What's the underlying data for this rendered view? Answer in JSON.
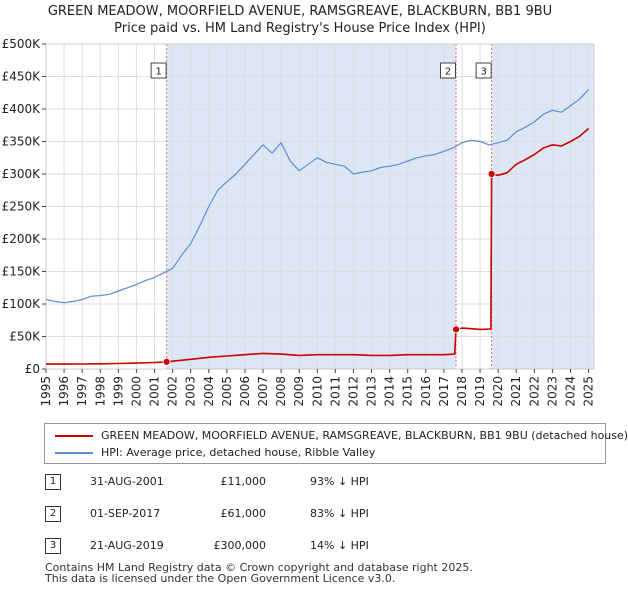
{
  "title_line1": "GREEN MEADOW, MOORFIELD AVENUE, RAMSGREAVE, BLACKBURN, BB1 9BU",
  "title_line2": "Price paid vs. HM Land Registry's House Price Index (HPI)",
  "colors": {
    "property": "#cc0000",
    "hpi": "#5b8fd4",
    "band": "#dce6f5",
    "vline": "#e07070",
    "grid": "#dddddd"
  },
  "legend": {
    "property_label": "GREEN MEADOW, MOORFIELD AVENUE, RAMSGREAVE, BLACKBURN, BB1 9BU (detached house)",
    "hpi_label": "HPI: Average price, detached house, Ribble Valley"
  },
  "sales": [
    {
      "num": "1",
      "date": "31-AUG-2001",
      "price": "£11,000",
      "relation": "93% ↓ HPI"
    },
    {
      "num": "2",
      "date": "01-SEP-2017",
      "price": "£61,000",
      "relation": "83% ↓ HPI"
    },
    {
      "num": "3",
      "date": "21-AUG-2019",
      "price": "£300,000",
      "relation": "14% ↓ HPI"
    }
  ],
  "footer": {
    "line1": "Contains HM Land Registry data © Crown copyright and database right 2025.",
    "line2": "This data is licensed under the Open Government Licence v3.0."
  },
  "chart_data": {
    "type": "line",
    "title": "GREEN MEADOW, MOORFIELD AVENUE, RAMSGREAVE, BLACKBURN, BB1 9BU — Price paid vs. HM Land Registry's House Price Index (HPI)",
    "xlabel": "",
    "ylabel": "",
    "xlim": [
      1995.0,
      2025.3
    ],
    "ylim": [
      0,
      500000
    ],
    "y_ticks": [
      0,
      50000,
      100000,
      150000,
      200000,
      250000,
      300000,
      350000,
      400000,
      450000,
      500000
    ],
    "y_tick_labels": [
      "£0",
      "£50K",
      "£100K",
      "£150K",
      "£200K",
      "£250K",
      "£300K",
      "£350K",
      "£400K",
      "£450K",
      "£500K"
    ],
    "x_ticks": [
      1995,
      1996,
      1997,
      1998,
      1999,
      2000,
      2001,
      2002,
      2003,
      2004,
      2005,
      2006,
      2007,
      2008,
      2009,
      2010,
      2011,
      2012,
      2013,
      2014,
      2015,
      2016,
      2017,
      2018,
      2019,
      2020,
      2021,
      2022,
      2023,
      2024,
      2025
    ],
    "x_tick_labels": [
      "1995",
      "1996",
      "1997",
      "1998",
      "1999",
      "2000",
      "2001",
      "2002",
      "2003",
      "2004",
      "2005",
      "2006",
      "2007",
      "2008",
      "2009",
      "2010",
      "2011",
      "2012",
      "2013",
      "2014",
      "2015",
      "2016",
      "2017",
      "2018",
      "2019",
      "2020",
      "2021",
      "2022",
      "2023",
      "2024",
      "2025"
    ],
    "grid": true,
    "shaded_regions": [
      {
        "from": 2001.67,
        "to": 2017.67
      },
      {
        "from": 2019.64,
        "to": 2025.3
      }
    ],
    "markers": [
      {
        "label": "1",
        "x": 2001.67,
        "y": 11000
      },
      {
        "label": "2",
        "x": 2017.67,
        "y": 61000
      },
      {
        "label": "3",
        "x": 2019.64,
        "y": 300000
      }
    ],
    "series": [
      {
        "name": "HPI: Average price, detached house, Ribble Valley",
        "x": [
          1995.0,
          1995.5,
          1996.0,
          1996.5,
          1997.0,
          1997.5,
          1998.0,
          1998.5,
          1999.0,
          1999.5,
          2000.0,
          2000.5,
          2001.0,
          2001.5,
          2002.0,
          2002.5,
          2003.0,
          2003.5,
          2004.0,
          2004.5,
          2005.0,
          2005.5,
          2006.0,
          2006.5,
          2007.0,
          2007.5,
          2008.0,
          2008.5,
          2009.0,
          2009.5,
          2010.0,
          2010.5,
          2011.0,
          2011.5,
          2012.0,
          2012.5,
          2013.0,
          2013.5,
          2014.0,
          2014.5,
          2015.0,
          2015.5,
          2016.0,
          2016.5,
          2017.0,
          2017.5,
          2018.0,
          2018.5,
          2019.0,
          2019.5,
          2020.0,
          2020.5,
          2021.0,
          2021.5,
          2022.0,
          2022.5,
          2023.0,
          2023.5,
          2024.0,
          2024.5,
          2025.0
        ],
        "values": [
          107000,
          104000,
          102000,
          104000,
          107000,
          112000,
          113000,
          115000,
          120000,
          125000,
          130000,
          136000,
          141000,
          148000,
          155000,
          175000,
          193000,
          220000,
          250000,
          275000,
          288000,
          300000,
          315000,
          330000,
          345000,
          332000,
          348000,
          320000,
          305000,
          315000,
          325000,
          318000,
          315000,
          312000,
          300000,
          303000,
          305000,
          310000,
          312000,
          315000,
          320000,
          325000,
          328000,
          330000,
          335000,
          340000,
          348000,
          352000,
          350000,
          345000,
          348000,
          352000,
          365000,
          372000,
          380000,
          392000,
          398000,
          395000,
          405000,
          415000,
          430000
        ]
      },
      {
        "name": "GREEN MEADOW, MOORFIELD AVENUE, RAMSGREAVE, BLACKBURN, BB1 9BU (detached house)",
        "x": [
          1995.0,
          1996.0,
          1997.0,
          1998.0,
          1999.0,
          2000.0,
          2001.0,
          2001.67,
          2002.0,
          2003.0,
          2004.0,
          2005.0,
          2006.0,
          2007.0,
          2008.0,
          2009.0,
          2010.0,
          2011.0,
          2012.0,
          2013.0,
          2014.0,
          2015.0,
          2016.0,
          2017.0,
          2017.6,
          2017.67,
          2018.0,
          2018.5,
          2019.0,
          2019.6,
          2019.64,
          2020.0,
          2020.5,
          2021.0,
          2021.5,
          2022.0,
          2022.5,
          2023.0,
          2023.5,
          2024.0,
          2024.5,
          2025.0
        ],
        "values": [
          7600,
          7500,
          7700,
          8000,
          8400,
          9100,
          10000,
          11000,
          12000,
          15000,
          18000,
          20000,
          22000,
          24000,
          23000,
          21000,
          22000,
          22000,
          22000,
          21000,
          21000,
          22000,
          22000,
          22000,
          23000,
          61000,
          63000,
          62000,
          61000,
          61500,
          300000,
          298000,
          302000,
          315000,
          322000,
          330000,
          340000,
          345000,
          343000,
          350000,
          358000,
          370000
        ]
      }
    ]
  }
}
